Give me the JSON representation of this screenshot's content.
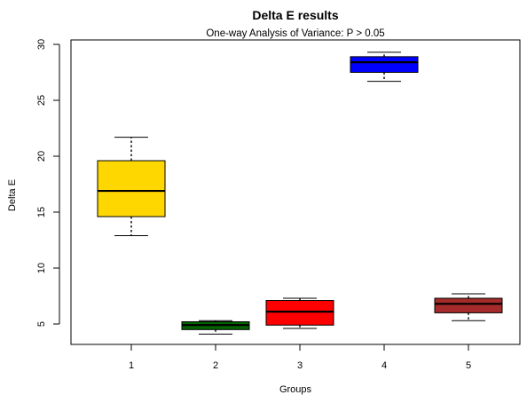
{
  "chart_data": {
    "type": "box",
    "title": "Delta E results",
    "subtitle": "One-way Analysis of Variance: P > 0.05",
    "xlabel": "Groups",
    "ylabel": "Delta E",
    "ylim": [
      3,
      30.5
    ],
    "y_ticks": [
      5,
      10,
      15,
      20,
      25,
      30
    ],
    "categories": [
      "1",
      "2",
      "3",
      "4",
      "5"
    ],
    "boxes": [
      {
        "group": "1",
        "min": 12.9,
        "q1": 14.6,
        "median": 16.9,
        "q3": 19.6,
        "max": 21.7,
        "color": "#FFD700"
      },
      {
        "group": "2",
        "min": 4.1,
        "q1": 4.5,
        "median": 4.9,
        "q3": 5.2,
        "max": 5.3,
        "color": "#006400"
      },
      {
        "group": "3",
        "min": 4.6,
        "q1": 4.9,
        "median": 6.1,
        "q3": 7.1,
        "max": 7.3,
        "color": "#FF0000"
      },
      {
        "group": "4",
        "min": 26.7,
        "q1": 27.5,
        "median": 28.4,
        "q3": 28.9,
        "max": 29.3,
        "color": "#0000FF"
      },
      {
        "group": "5",
        "min": 5.3,
        "q1": 6.0,
        "median": 6.8,
        "q3": 7.3,
        "max": 7.7,
        "color": "#A52A2A"
      }
    ]
  }
}
